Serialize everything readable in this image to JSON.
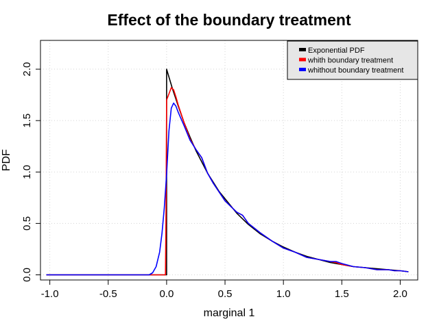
{
  "chart_data": {
    "type": "line",
    "title": "Effect of the boundary treatment",
    "xlabel": "marginal 1",
    "ylabel": "PDF",
    "xlim": [
      -1.08,
      2.15
    ],
    "ylim": [
      -0.05,
      2.28
    ],
    "x_ticks": [
      -1.0,
      -0.5,
      0.0,
      0.5,
      1.0,
      1.5,
      2.0
    ],
    "x_tick_labels": [
      "-1.0",
      "-0.5",
      "0.0",
      "0.5",
      "1.0",
      "1.5",
      "2.0"
    ],
    "y_ticks": [
      0.0,
      0.5,
      1.0,
      1.5,
      2.0
    ],
    "y_tick_labels": [
      "0.0",
      "0.5",
      "1.0",
      "1.5",
      "2.0"
    ],
    "grid": true,
    "legend_position": "top-right",
    "series": [
      {
        "name": "Exponential PDF",
        "color": "#000000",
        "x": [
          -1.03,
          0.0,
          0.0,
          0.05,
          0.1,
          0.15,
          0.2,
          0.25,
          0.3,
          0.35,
          0.4,
          0.45,
          0.5,
          0.6,
          0.7,
          0.8,
          0.9,
          1.0,
          1.1,
          1.2,
          1.3,
          1.4,
          1.5,
          1.6,
          1.7,
          1.8,
          1.9,
          2.0,
          2.07
        ],
        "y": [
          0.0,
          0.0,
          2.0,
          1.81,
          1.64,
          1.48,
          1.34,
          1.21,
          1.1,
          0.99,
          0.9,
          0.81,
          0.74,
          0.6,
          0.49,
          0.4,
          0.33,
          0.27,
          0.22,
          0.18,
          0.15,
          0.12,
          0.1,
          0.08,
          0.07,
          0.06,
          0.05,
          0.04,
          0.03
        ]
      },
      {
        "name": "whith boundary treatment",
        "color": "#ff0000",
        "x": [
          -1.03,
          -0.01,
          -0.005,
          0.0,
          0.02,
          0.04,
          0.06,
          0.08,
          0.1,
          0.15,
          0.2,
          0.25,
          0.3,
          0.35,
          0.4,
          0.5,
          0.6,
          0.65,
          0.7,
          0.8,
          0.9,
          1.0,
          1.05,
          1.1,
          1.2,
          1.3,
          1.4,
          1.45,
          1.5,
          1.6,
          1.7,
          1.8,
          1.9,
          1.95,
          2.0,
          2.07
        ],
        "y": [
          0.0,
          0.0,
          0.6,
          1.7,
          1.76,
          1.82,
          1.8,
          1.73,
          1.65,
          1.48,
          1.32,
          1.22,
          1.14,
          0.99,
          0.89,
          0.72,
          0.61,
          0.58,
          0.5,
          0.41,
          0.33,
          0.26,
          0.24,
          0.22,
          0.17,
          0.15,
          0.13,
          0.12,
          0.1,
          0.08,
          0.07,
          0.05,
          0.05,
          0.04,
          0.04,
          0.03
        ]
      },
      {
        "name": "whithout boundary treatment",
        "color": "#0000ff",
        "x": [
          -1.03,
          -0.15,
          -0.12,
          -0.09,
          -0.06,
          -0.04,
          -0.02,
          0.0,
          0.02,
          0.04,
          0.06,
          0.08,
          0.1,
          0.15,
          0.2,
          0.25,
          0.3,
          0.35,
          0.4,
          0.5,
          0.6,
          0.65,
          0.7,
          0.8,
          0.9,
          1.0,
          1.05,
          1.1,
          1.2,
          1.3,
          1.4,
          1.45,
          1.5,
          1.6,
          1.7,
          1.8,
          1.9,
          1.95,
          2.0,
          2.07
        ],
        "y": [
          0.0,
          0.0,
          0.02,
          0.08,
          0.22,
          0.4,
          0.65,
          0.98,
          1.4,
          1.62,
          1.67,
          1.64,
          1.58,
          1.45,
          1.31,
          1.22,
          1.14,
          0.99,
          0.89,
          0.72,
          0.61,
          0.58,
          0.5,
          0.41,
          0.33,
          0.26,
          0.24,
          0.22,
          0.17,
          0.15,
          0.13,
          0.13,
          0.11,
          0.08,
          0.07,
          0.05,
          0.05,
          0.04,
          0.04,
          0.03
        ]
      }
    ]
  }
}
